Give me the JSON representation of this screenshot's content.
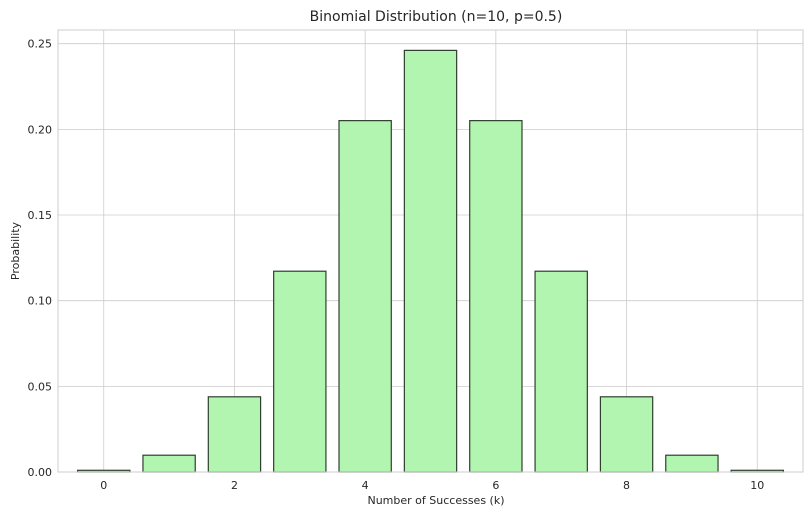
{
  "chart_data": {
    "type": "bar",
    "title": "Binomial Distribution (n=10, p=0.5)",
    "xlabel": "Number of Successes (k)",
    "ylabel": "Probability",
    "categories": [
      0,
      1,
      2,
      3,
      4,
      5,
      6,
      7,
      8,
      9,
      10
    ],
    "values": [
      0.001,
      0.0098,
      0.0439,
      0.1172,
      0.2051,
      0.2461,
      0.2051,
      0.1172,
      0.0439,
      0.0098,
      0.001
    ],
    "xticks": [
      0,
      2,
      4,
      6,
      8,
      10
    ],
    "xtick_labels": [
      "0",
      "2",
      "4",
      "6",
      "8",
      "10"
    ],
    "yticks": [
      0.0,
      0.05,
      0.1,
      0.15,
      0.2,
      0.25
    ],
    "ytick_labels": [
      "0.00",
      "0.05",
      "0.10",
      "0.15",
      "0.20",
      "0.25"
    ],
    "xlim": [
      -0.7,
      10.7
    ],
    "ylim": [
      0,
      0.258
    ],
    "bar_width": 0.8,
    "grid": true,
    "colors": {
      "bar_fill": "#b2f5b0",
      "bar_edge": "#2f3f2f",
      "grid": "#cccccc"
    }
  }
}
